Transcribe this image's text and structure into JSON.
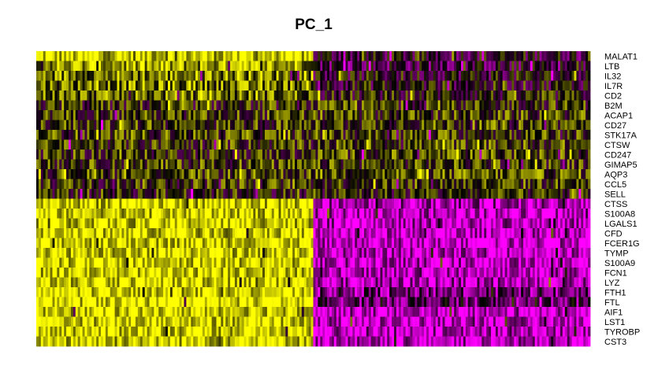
{
  "chart_data": {
    "type": "heatmap",
    "title": "PC_1",
    "genes": [
      "MALAT1",
      "LTB",
      "IL32",
      "IL7R",
      "CD2",
      "B2M",
      "ACAP1",
      "CD27",
      "STK17A",
      "CTSW",
      "CD247",
      "GIMAP5",
      "AQP3",
      "CCL5",
      "SELL",
      "CTSS",
      "S100A8",
      "LGALS1",
      "CFD",
      "FCER1G",
      "TYMP",
      "S100A9",
      "FCN1",
      "LYZ",
      "FTH1",
      "FTL",
      "AIF1",
      "LST1",
      "TYROBP",
      "CST3"
    ],
    "cell_groups": [
      {
        "name": "",
        "fraction": 0.5
      },
      {
        "name": "",
        "fraction": 0.5
      }
    ],
    "mean_scaled_expression": [
      [
        0.9,
        0.45
      ],
      [
        0.8,
        0.4
      ],
      [
        0.75,
        0.48
      ],
      [
        0.72,
        0.5
      ],
      [
        0.7,
        0.52
      ],
      [
        0.55,
        0.58
      ],
      [
        0.6,
        0.6
      ],
      [
        0.6,
        0.62
      ],
      [
        0.62,
        0.6
      ],
      [
        0.58,
        0.62
      ],
      [
        0.58,
        0.62
      ],
      [
        0.6,
        0.6
      ],
      [
        0.62,
        0.65
      ],
      [
        0.6,
        0.6
      ],
      [
        0.55,
        0.55
      ],
      [
        0.92,
        0.15
      ],
      [
        0.92,
        0.12
      ],
      [
        0.92,
        0.12
      ],
      [
        0.93,
        0.1
      ],
      [
        0.93,
        0.1
      ],
      [
        0.93,
        0.12
      ],
      [
        0.93,
        0.12
      ],
      [
        0.93,
        0.12
      ],
      [
        0.93,
        0.15
      ],
      [
        0.95,
        0.28
      ],
      [
        0.95,
        0.32
      ],
      [
        0.93,
        0.12
      ],
      [
        0.93,
        0.12
      ],
      [
        0.93,
        0.12
      ],
      [
        0.92,
        0.12
      ]
    ],
    "color_scale": {
      "low": "#ff00ff",
      "mid": "#000000",
      "high": "#ffff00"
    },
    "legend": "none"
  }
}
